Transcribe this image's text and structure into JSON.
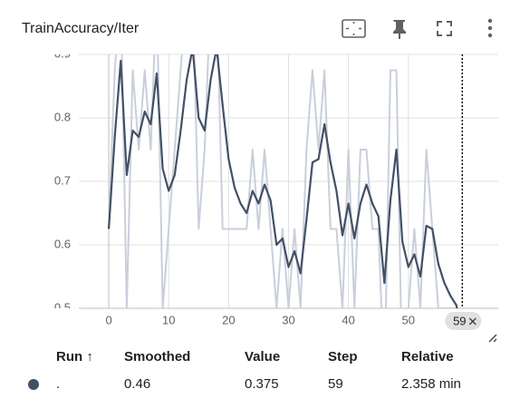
{
  "chart_data": {
    "type": "line",
    "title": "TrainAccuracy/Iter",
    "x": [
      0,
      1,
      2,
      3,
      4,
      5,
      6,
      7,
      8,
      9,
      10,
      11,
      12,
      13,
      14,
      15,
      16,
      17,
      18,
      19,
      20,
      21,
      22,
      23,
      24,
      25,
      26,
      27,
      28,
      29,
      30,
      31,
      32,
      33,
      34,
      35,
      36,
      37,
      38,
      39,
      40,
      41,
      42,
      43,
      44,
      45,
      46,
      47,
      48,
      49,
      50,
      51,
      52,
      53,
      54,
      55,
      56,
      57,
      58,
      59
    ],
    "series": [
      {
        "name": "Smoothed",
        "color": "#425066",
        "values": [
          0.625,
          0.77,
          0.89,
          0.71,
          0.78,
          0.77,
          0.81,
          0.79,
          0.87,
          0.72,
          0.685,
          0.71,
          0.78,
          0.86,
          0.91,
          0.8,
          0.78,
          0.86,
          0.91,
          0.82,
          0.735,
          0.69,
          0.665,
          0.65,
          0.685,
          0.665,
          0.695,
          0.67,
          0.6,
          0.61,
          0.565,
          0.59,
          0.555,
          0.64,
          0.73,
          0.735,
          0.79,
          0.73,
          0.685,
          0.615,
          0.665,
          0.61,
          0.665,
          0.695,
          0.665,
          0.645,
          0.54,
          0.67,
          0.75,
          0.605,
          0.565,
          0.585,
          0.55,
          0.63,
          0.625,
          0.57,
          0.54,
          0.52,
          0.505,
          0.46
        ]
      },
      {
        "name": "Value",
        "color": "#c9cfdb",
        "values": [
          0.625,
          0.875,
          1.0,
          0.5,
          0.875,
          0.75,
          0.875,
          0.75,
          1.0,
          0.5,
          0.625,
          0.75,
          0.875,
          1.0,
          1.0,
          0.625,
          0.75,
          1.0,
          1.0,
          0.625,
          0.625,
          0.625,
          0.625,
          0.625,
          0.75,
          0.625,
          0.75,
          0.625,
          0.5,
          0.625,
          0.5,
          0.625,
          0.5,
          0.75,
          0.875,
          0.75,
          0.875,
          0.625,
          0.625,
          0.5,
          0.75,
          0.5,
          0.75,
          0.75,
          0.625,
          0.625,
          0.375,
          0.875,
          0.875,
          0.375,
          0.5,
          0.625,
          0.5,
          0.75,
          0.625,
          0.5,
          0.5,
          0.5,
          0.5,
          0.375
        ]
      }
    ],
    "xlim": [
      -5,
      65
    ],
    "xticks": [
      0,
      10,
      20,
      30,
      40,
      50
    ],
    "ylim": [
      0.5,
      0.9
    ],
    "yticks": [
      0.5,
      0.6,
      0.7,
      0.8,
      0.9
    ],
    "grid": true,
    "cursor": 59
  },
  "table": {
    "columns": [
      "Run ↑",
      "Smoothed",
      "Value",
      "Step",
      "Relative"
    ],
    "rows": [
      [
        ".",
        0.46,
        0.375,
        59,
        "2.358 min"
      ]
    ]
  }
}
